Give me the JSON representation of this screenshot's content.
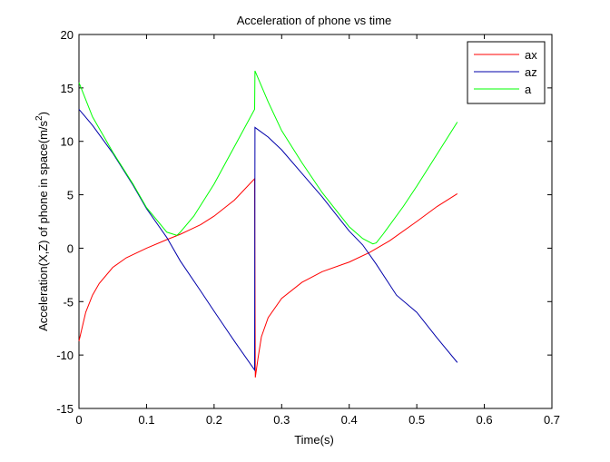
{
  "chart_data": {
    "type": "line",
    "title": "Acceleration of phone vs time",
    "xlabel": "Time(s)",
    "ylabel_main": "Acceleration(X,Z) of phone in space(m/s",
    "ylabel_superscript": "2",
    "ylabel_suffix": ")",
    "xlim": [
      0,
      0.7
    ],
    "ylim": [
      -15,
      20
    ],
    "xticks": [
      0,
      0.1,
      0.2,
      0.3,
      0.4,
      0.5,
      0.6,
      0.7
    ],
    "xtick_labels": [
      "0",
      "0.1",
      "0.2",
      "0.3",
      "0.4",
      "0.5",
      "0.6",
      "0.7"
    ],
    "yticks": [
      -15,
      -10,
      -5,
      0,
      5,
      10,
      15,
      20
    ],
    "ytick_labels": [
      "-15",
      "-10",
      "-5",
      "0",
      "5",
      "10",
      "15",
      "20"
    ],
    "grid": false,
    "legend_position": "top-right",
    "series": [
      {
        "name": "ax",
        "color": "#ff0000",
        "points": [
          [
            0,
            -8.7
          ],
          [
            0.01,
            -6.0
          ],
          [
            0.02,
            -4.4
          ],
          [
            0.03,
            -3.3
          ],
          [
            0.05,
            -1.8
          ],
          [
            0.07,
            -0.9
          ],
          [
            0.1,
            0.0
          ],
          [
            0.13,
            0.8
          ],
          [
            0.15,
            1.3
          ],
          [
            0.18,
            2.2
          ],
          [
            0.2,
            3.0
          ],
          [
            0.23,
            4.5
          ],
          [
            0.26,
            6.5
          ],
          [
            0.261,
            -12.1
          ],
          [
            0.265,
            -10.3
          ],
          [
            0.27,
            -8.3
          ],
          [
            0.28,
            -6.5
          ],
          [
            0.3,
            -4.7
          ],
          [
            0.33,
            -3.2
          ],
          [
            0.36,
            -2.2
          ],
          [
            0.4,
            -1.3
          ],
          [
            0.43,
            -0.4
          ],
          [
            0.46,
            0.7
          ],
          [
            0.5,
            2.5
          ],
          [
            0.53,
            3.9
          ],
          [
            0.56,
            5.1
          ]
        ]
      },
      {
        "name": "az",
        "color": "#0000aa",
        "points": [
          [
            0,
            13.0
          ],
          [
            0.02,
            11.5
          ],
          [
            0.05,
            8.9
          ],
          [
            0.08,
            5.9
          ],
          [
            0.1,
            3.7
          ],
          [
            0.13,
            1.0
          ],
          [
            0.15,
            -1.2
          ],
          [
            0.18,
            -4.0
          ],
          [
            0.2,
            -5.9
          ],
          [
            0.23,
            -8.7
          ],
          [
            0.26,
            -11.4
          ],
          [
            0.2605,
            11.3
          ],
          [
            0.28,
            10.4
          ],
          [
            0.3,
            9.2
          ],
          [
            0.33,
            7.0
          ],
          [
            0.36,
            4.8
          ],
          [
            0.38,
            3.2
          ],
          [
            0.4,
            1.6
          ],
          [
            0.42,
            0.3
          ],
          [
            0.44,
            -1.5
          ],
          [
            0.47,
            -4.4
          ],
          [
            0.5,
            -6.0
          ],
          [
            0.53,
            -8.4
          ],
          [
            0.56,
            -10.7
          ]
        ]
      },
      {
        "name": "a",
        "color": "#00ff00",
        "points": [
          [
            0,
            15.5
          ],
          [
            0.02,
            12.3
          ],
          [
            0.05,
            9.0
          ],
          [
            0.08,
            6.0
          ],
          [
            0.1,
            3.8
          ],
          [
            0.13,
            1.5
          ],
          [
            0.145,
            1.2
          ],
          [
            0.15,
            1.5
          ],
          [
            0.17,
            3.0
          ],
          [
            0.2,
            6.0
          ],
          [
            0.23,
            9.5
          ],
          [
            0.26,
            13.0
          ],
          [
            0.2605,
            16.6
          ],
          [
            0.28,
            13.7
          ],
          [
            0.3,
            11.0
          ],
          [
            0.33,
            8.0
          ],
          [
            0.36,
            5.2
          ],
          [
            0.38,
            3.6
          ],
          [
            0.4,
            2.0
          ],
          [
            0.42,
            0.9
          ],
          [
            0.435,
            0.4
          ],
          [
            0.44,
            0.5
          ],
          [
            0.45,
            1.3
          ],
          [
            0.48,
            3.9
          ],
          [
            0.5,
            5.8
          ],
          [
            0.53,
            8.8
          ],
          [
            0.56,
            11.8
          ]
        ]
      }
    ]
  }
}
